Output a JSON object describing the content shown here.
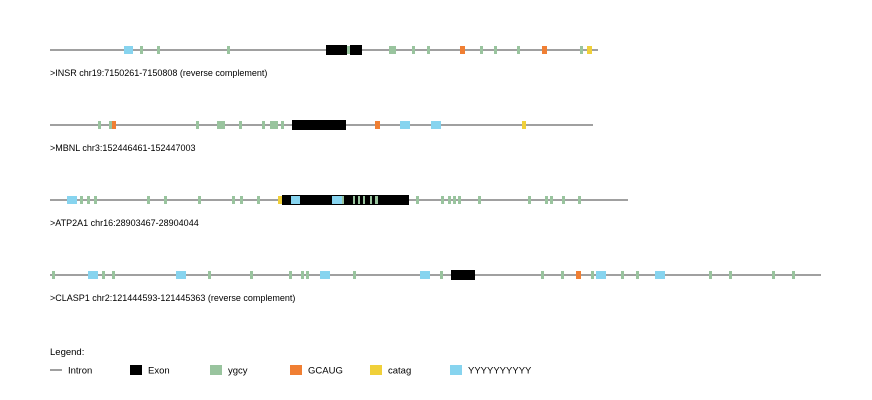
{
  "colors": {
    "intron": "#808080",
    "exon": "#000000",
    "ygcy": "#99c49e",
    "GCAUG": "#f07f33",
    "catag": "#f0d03a",
    "YYYYYYYYYY": "#87d4ef"
  },
  "tracks": [
    {
      "label": ">INSR chr19:7150261-7150808 (reverse complement)",
      "length": 548,
      "features": [
        {
          "type": "YYYYYYYYYY",
          "start": 74,
          "end": 83
        },
        {
          "type": "ygcy",
          "start": 90,
          "end": 93
        },
        {
          "type": "ygcy",
          "start": 107,
          "end": 110
        },
        {
          "type": "ygcy",
          "start": 177,
          "end": 180
        },
        {
          "type": "exon",
          "start": 276,
          "end": 297
        },
        {
          "type": "ygcy",
          "start": 297,
          "end": 300
        },
        {
          "type": "exon",
          "start": 300,
          "end": 312
        },
        {
          "type": "ygcy",
          "start": 339,
          "end": 346
        },
        {
          "type": "ygcy",
          "start": 362,
          "end": 365
        },
        {
          "type": "ygcy",
          "start": 377,
          "end": 380
        },
        {
          "type": "GCAUG",
          "start": 410,
          "end": 415
        },
        {
          "type": "ygcy",
          "start": 430,
          "end": 433
        },
        {
          "type": "ygcy",
          "start": 444,
          "end": 447
        },
        {
          "type": "ygcy",
          "start": 467,
          "end": 470
        },
        {
          "type": "GCAUG",
          "start": 492,
          "end": 497
        },
        {
          "type": "ygcy",
          "start": 530,
          "end": 533
        },
        {
          "type": "catag",
          "start": 537,
          "end": 542
        }
      ]
    },
    {
      "label": ">MBNL chr3:152446461-152447003",
      "length": 543,
      "features": [
        {
          "type": "ygcy",
          "start": 48,
          "end": 51
        },
        {
          "type": "ygcy",
          "start": 59,
          "end": 62
        },
        {
          "type": "GCAUG",
          "start": 62,
          "end": 66
        },
        {
          "type": "ygcy",
          "start": 146,
          "end": 149
        },
        {
          "type": "ygcy",
          "start": 167,
          "end": 175
        },
        {
          "type": "ygcy",
          "start": 189,
          "end": 192
        },
        {
          "type": "ygcy",
          "start": 212,
          "end": 215
        },
        {
          "type": "ygcy",
          "start": 220,
          "end": 228
        },
        {
          "type": "ygcy",
          "start": 231,
          "end": 234
        },
        {
          "type": "exon",
          "start": 242,
          "end": 296
        },
        {
          "type": "GCAUG",
          "start": 325,
          "end": 330
        },
        {
          "type": "YYYYYYYYYY",
          "start": 350,
          "end": 360
        },
        {
          "type": "YYYYYYYYYY",
          "start": 381,
          "end": 391
        },
        {
          "type": "catag",
          "start": 472,
          "end": 476
        }
      ]
    },
    {
      "label": ">ATP2A1 chr16:28903467-28904044",
      "length": 578,
      "features": [
        {
          "type": "YYYYYYYYYY",
          "start": 17,
          "end": 27
        },
        {
          "type": "ygcy",
          "start": 30,
          "end": 33
        },
        {
          "type": "ygcy",
          "start": 37,
          "end": 40
        },
        {
          "type": "ygcy",
          "start": 44,
          "end": 47
        },
        {
          "type": "ygcy",
          "start": 97,
          "end": 100
        },
        {
          "type": "ygcy",
          "start": 114,
          "end": 117
        },
        {
          "type": "ygcy",
          "start": 148,
          "end": 151
        },
        {
          "type": "ygcy",
          "start": 182,
          "end": 185
        },
        {
          "type": "ygcy",
          "start": 190,
          "end": 193
        },
        {
          "type": "ygcy",
          "start": 207,
          "end": 210
        },
        {
          "type": "catag",
          "start": 228,
          "end": 232
        },
        {
          "type": "exon",
          "start": 232,
          "end": 359
        },
        {
          "type": "YYYYYYYYYY",
          "start": 241,
          "end": 250
        },
        {
          "type": "YYYYYYYYYY",
          "start": 282,
          "end": 292
        },
        {
          "type": "ygcy",
          "start": 292,
          "end": 294
        },
        {
          "type": "ygcy",
          "start": 303,
          "end": 305
        },
        {
          "type": "ygcy",
          "start": 308,
          "end": 310
        },
        {
          "type": "ygcy",
          "start": 313,
          "end": 315
        },
        {
          "type": "ygcy",
          "start": 320,
          "end": 322
        },
        {
          "type": "ygcy",
          "start": 325,
          "end": 328
        },
        {
          "type": "ygcy",
          "start": 366,
          "end": 369
        },
        {
          "type": "ygcy",
          "start": 391,
          "end": 394
        },
        {
          "type": "ygcy",
          "start": 398,
          "end": 401
        },
        {
          "type": "ygcy",
          "start": 403,
          "end": 406
        },
        {
          "type": "ygcy",
          "start": 408,
          "end": 411
        },
        {
          "type": "ygcy",
          "start": 428,
          "end": 431
        },
        {
          "type": "ygcy",
          "start": 478,
          "end": 481
        },
        {
          "type": "ygcy",
          "start": 495,
          "end": 498
        },
        {
          "type": "ygcy",
          "start": 500,
          "end": 503
        },
        {
          "type": "ygcy",
          "start": 512,
          "end": 515
        },
        {
          "type": "ygcy",
          "start": 528,
          "end": 531
        }
      ]
    },
    {
      "label": ">CLASP1 chr2:121444593-121445363 (reverse complement)",
      "length": 771,
      "features": [
        {
          "type": "ygcy",
          "start": 2,
          "end": 5
        },
        {
          "type": "YYYYYYYYYY",
          "start": 38,
          "end": 48
        },
        {
          "type": "ygcy",
          "start": 52,
          "end": 55
        },
        {
          "type": "ygcy",
          "start": 62,
          "end": 65
        },
        {
          "type": "YYYYYYYYYY",
          "start": 126,
          "end": 136
        },
        {
          "type": "ygcy",
          "start": 158,
          "end": 161
        },
        {
          "type": "ygcy",
          "start": 200,
          "end": 203
        },
        {
          "type": "ygcy",
          "start": 239,
          "end": 242
        },
        {
          "type": "ygcy",
          "start": 251,
          "end": 254
        },
        {
          "type": "ygcy",
          "start": 256,
          "end": 259
        },
        {
          "type": "YYYYYYYYYY",
          "start": 270,
          "end": 280
        },
        {
          "type": "ygcy",
          "start": 303,
          "end": 306
        },
        {
          "type": "YYYYYYYYYY",
          "start": 370,
          "end": 380
        },
        {
          "type": "ygcy",
          "start": 390,
          "end": 393
        },
        {
          "type": "exon",
          "start": 401,
          "end": 425
        },
        {
          "type": "ygcy",
          "start": 491,
          "end": 494
        },
        {
          "type": "ygcy",
          "start": 511,
          "end": 514
        },
        {
          "type": "GCAUG",
          "start": 526,
          "end": 531
        },
        {
          "type": "ygcy",
          "start": 541,
          "end": 544
        },
        {
          "type": "YYYYYYYYYY",
          "start": 546,
          "end": 556
        },
        {
          "type": "ygcy",
          "start": 571,
          "end": 574
        },
        {
          "type": "ygcy",
          "start": 586,
          "end": 589
        },
        {
          "type": "YYYYYYYYYY",
          "start": 605,
          "end": 615
        },
        {
          "type": "ygcy",
          "start": 659,
          "end": 662
        },
        {
          "type": "ygcy",
          "start": 679,
          "end": 682
        },
        {
          "type": "ygcy",
          "start": 722,
          "end": 725
        },
        {
          "type": "ygcy",
          "start": 742,
          "end": 745
        }
      ]
    }
  ],
  "legend": {
    "title": "Legend:",
    "items": [
      {
        "key": "intron",
        "label": "Intron",
        "swatch": "line"
      },
      {
        "key": "exon",
        "label": "Exon",
        "swatch": "box"
      },
      {
        "key": "ygcy",
        "label": "ygcy",
        "swatch": "box"
      },
      {
        "key": "GCAUG",
        "label": "GCAUG",
        "swatch": "box"
      },
      {
        "key": "catag",
        "label": "catag",
        "swatch": "box"
      },
      {
        "key": "YYYYYYYYYY",
        "label": "YYYYYYYYYY",
        "swatch": "box"
      }
    ]
  }
}
